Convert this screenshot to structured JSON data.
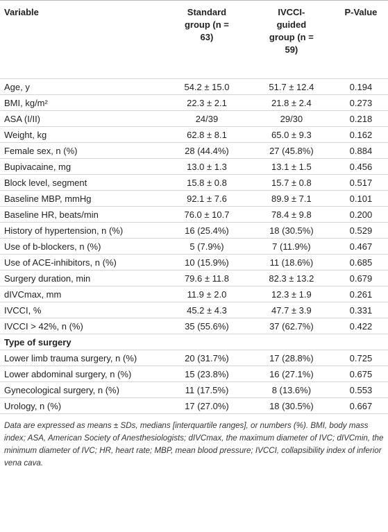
{
  "table": {
    "header": [
      "Variable",
      "Standard group (n = 63)",
      "IVCCI-guided group (n = 59)",
      "P-Value"
    ],
    "rows": [
      [
        "Age, y",
        "54.2 ± 15.0",
        "51.7 ± 12.4",
        "0.194"
      ],
      [
        "BMI, kg/m²",
        "22.3 ± 2.1",
        "21.8 ± 2.4",
        "0.273"
      ],
      [
        "ASA (I/II)",
        "24/39",
        "29/30",
        "0.218"
      ],
      [
        "Weight, kg",
        "62.8 ± 8.1",
        "65.0 ± 9.3",
        "0.162"
      ],
      [
        "Female sex, n (%)",
        "28 (44.4%)",
        "27 (45.8%)",
        "0.884"
      ],
      [
        "Bupivacaine, mg",
        "13.0 ± 1.3",
        "13.1 ± 1.5",
        "0.456"
      ],
      [
        "Block level, segment",
        "15.8 ± 0.8",
        "15.7 ± 0.8",
        "0.517"
      ],
      [
        "Baseline MBP, mmHg",
        "92.1 ± 7.6",
        "89.9 ± 7.1",
        "0.101"
      ],
      [
        "Baseline HR, beats/min",
        "76.0 ± 10.7",
        "78.4 ± 9.8",
        "0.200"
      ],
      [
        "History of hypertension, n (%)",
        "16 (25.4%)",
        "18 (30.5%)",
        "0.529"
      ],
      [
        "Use of b-blockers, n (%)",
        "5 (7.9%)",
        "7 (11.9%)",
        "0.467"
      ],
      [
        "Use of ACE-inhibitors, n (%)",
        "10 (15.9%)",
        "11 (18.6%)",
        "0.685"
      ],
      [
        "Surgery duration, min",
        "79.6 ± 11.8",
        "82.3 ± 13.2",
        "0.679"
      ],
      [
        "dIVCmax, mm",
        "11.9 ± 2.0",
        "12.3 ± 1.9",
        "0.261"
      ],
      [
        "IVCCI, %",
        "45.2 ± 4.3",
        "47.7 ± 3.9",
        "0.331"
      ],
      [
        "IVCCI > 42%, n (%)",
        "35 (55.6%)",
        "37 (62.7%)",
        "0.422"
      ],
      [
        "Type of surgery"
      ],
      [
        "Lower limb trauma surgery, n (%)",
        "20 (31.7%)",
        "17 (28.8%)",
        "0.725"
      ],
      [
        "Lower abdominal surgery, n (%)",
        "15 (23.8%)",
        "16 (27.1%)",
        "0.675"
      ],
      [
        "Gynecological surgery, n (%)",
        "11 (17.5%)",
        "8 (13.6%)",
        "0.553"
      ],
      [
        "Urology, n (%)",
        "17 (27.0%)",
        "18 (30.5%)",
        "0.667"
      ]
    ],
    "footnote": "Data are expressed as means ± SDs, medians [interquartile ranges], or numbers (%). BMI, body mass index; ASA, American Society of Anesthesiologists; dIVCmax, the maximum diameter of IVC; dIVCmin, the minimum diameter of IVC; HR, heart rate; MBP, mean blood pressure; IVCCI, collapsibility index of inferior vena cava."
  }
}
